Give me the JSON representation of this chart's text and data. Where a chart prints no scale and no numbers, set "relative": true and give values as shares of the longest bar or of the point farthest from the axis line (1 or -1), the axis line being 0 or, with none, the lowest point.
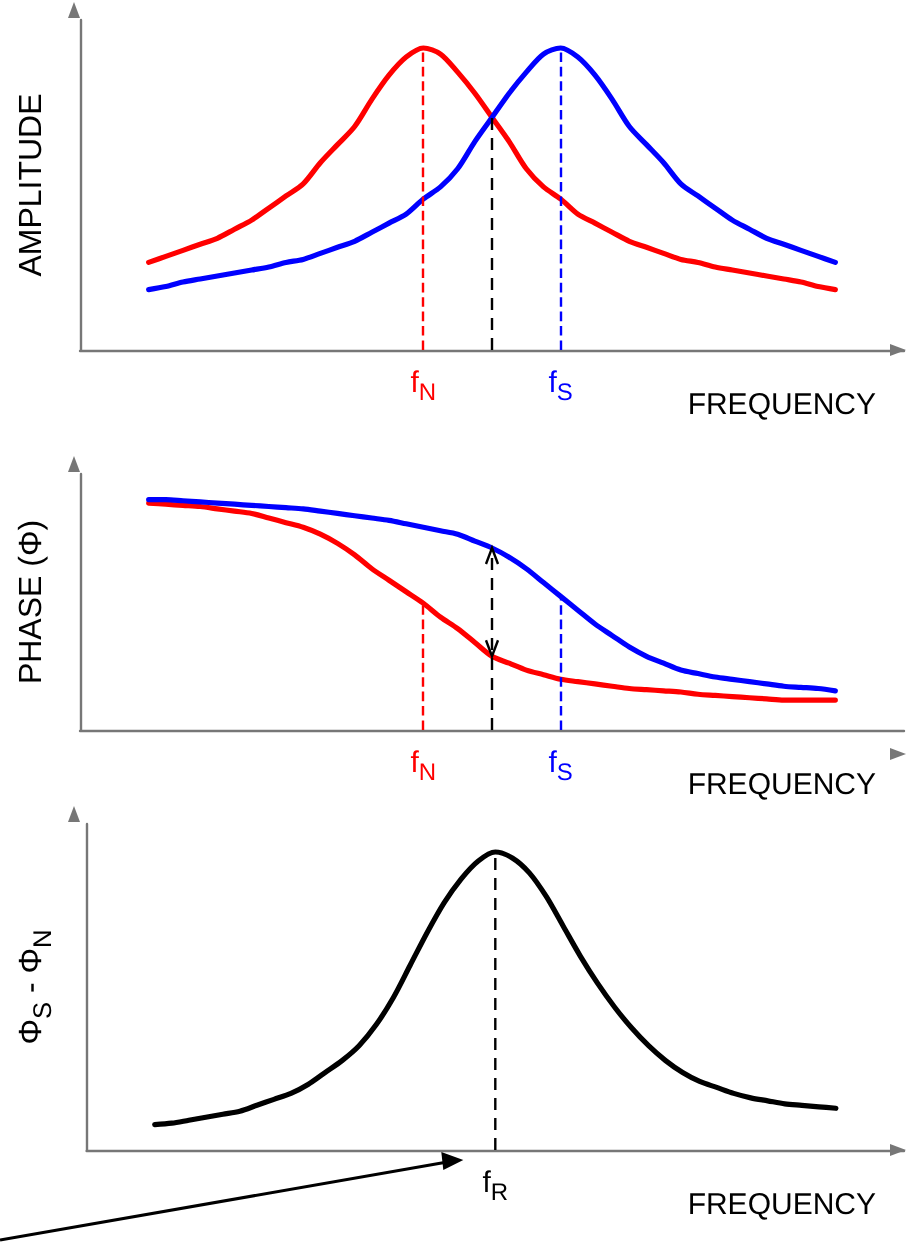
{
  "chart_data": [
    {
      "type": "line",
      "ylabel": "AMPLITUDE",
      "xlabel": "FREQUENCY",
      "relative": true,
      "tick_labels": "x",
      "grid": false,
      "marker": "none",
      "line_style": "solid",
      "categories": [
        null,
        null,
        null,
        null,
        null,
        null,
        null,
        null,
        null,
        null,
        null,
        null,
        null,
        null,
        null,
        null,
        null,
        null,
        null,
        null,
        "f$_{N}$",
        null,
        null,
        null,
        null,
        null,
        null,
        null,
        "f$_{S}$",
        null,
        null,
        null,
        null,
        null,
        null,
        null,
        null,
        null,
        null,
        null,
        null,
        null,
        null,
        null,
        null,
        null,
        null,
        null,
        null
      ],
      "series": [
        {
          "color": "#ff0000",
          "values": [
            null,
            null,
            null,
            null,
            0.29,
            0.31,
            0.33,
            0.35,
            0.37,
            0.4,
            0.43,
            0.47,
            0.51,
            0.55,
            0.62,
            0.68,
            0.74,
            0.83,
            0.91,
            0.97,
            1,
            0.98,
            0.92,
            0.85,
            0.77,
            0.69,
            0.6,
            0.54,
            0.5,
            0.45,
            0.42,
            0.39,
            0.36,
            0.34,
            0.32,
            0.3,
            0.29,
            0.275,
            0.265,
            0.255,
            0.245,
            0.235,
            0.225,
            0.21,
            0.2,
            null,
            null,
            null,
            null
          ]
        },
        {
          "color": "#0000ff",
          "values": [
            null,
            null,
            null,
            null,
            0.2,
            0.21,
            0.225,
            0.235,
            0.245,
            0.255,
            0.265,
            0.275,
            0.29,
            0.3,
            0.32,
            0.34,
            0.36,
            0.39,
            0.42,
            0.45,
            0.5,
            0.54,
            0.6,
            0.69,
            0.77,
            0.85,
            0.92,
            0.98,
            1,
            0.97,
            0.91,
            0.83,
            0.74,
            0.68,
            0.62,
            0.55,
            0.51,
            0.47,
            0.43,
            0.4,
            0.37,
            0.35,
            0.33,
            0.31,
            0.29,
            null,
            null,
            null,
            null
          ]
        }
      ],
      "ref_lines": [
        {
          "axis": "x",
          "value": "f$_{N}$",
          "label": null,
          "color": "#ff0000",
          "line_style": "dashed"
        },
        {
          "axis": "x",
          "value": "f$_{S}$",
          "label": null,
          "color": "#0000ff",
          "line_style": "dashed"
        }
      ]
    },
    {
      "type": "line",
      "ylabel": "PHASE (Φ)",
      "xlabel": "FREQUENCY",
      "relative": true,
      "tick_labels": "x",
      "grid": false,
      "marker": "none",
      "line_style": "solid",
      "categories": [
        null,
        null,
        null,
        null,
        null,
        null,
        null,
        null,
        null,
        null,
        null,
        null,
        null,
        null,
        null,
        null,
        null,
        null,
        null,
        null,
        "f$_{N}$",
        null,
        null,
        null,
        null,
        null,
        null,
        null,
        "f$_{S}$",
        null,
        null,
        null,
        null,
        null,
        null,
        null,
        null,
        null,
        null,
        null,
        null,
        null,
        null,
        null,
        null,
        null,
        null,
        null,
        null
      ],
      "series": [
        {
          "color": "#ff0000",
          "values": [
            null,
            null,
            null,
            null,
            0.985,
            0.98,
            0.975,
            0.97,
            0.96,
            0.95,
            0.94,
            0.92,
            0.9,
            0.88,
            0.85,
            0.81,
            0.76,
            0.7,
            0.65,
            0.6,
            0.55,
            0.49,
            0.44,
            0.38,
            0.32,
            0.29,
            0.26,
            0.24,
            0.22,
            0.21,
            0.2,
            0.19,
            0.18,
            0.175,
            0.17,
            0.165,
            0.155,
            0.15,
            0.145,
            0.14,
            0.135,
            0.13,
            0.13,
            0.13,
            0.13,
            null,
            null,
            null,
            null
          ]
        },
        {
          "color": "#0000ff",
          "values": [
            null,
            null,
            null,
            null,
            1,
            1,
            0.995,
            0.99,
            0.985,
            0.98,
            0.975,
            0.97,
            0.965,
            0.96,
            0.95,
            0.94,
            0.93,
            0.92,
            0.91,
            0.895,
            0.88,
            0.865,
            0.85,
            0.82,
            0.79,
            0.75,
            0.7,
            0.64,
            0.58,
            0.52,
            0.46,
            0.41,
            0.36,
            0.32,
            0.29,
            0.26,
            0.245,
            0.23,
            0.22,
            0.21,
            0.2,
            0.19,
            0.185,
            0.18,
            0.17,
            null,
            null,
            null,
            null
          ]
        }
      ],
      "ref_lines": [
        {
          "axis": "x",
          "value": "f$_{N}$",
          "label": null,
          "color": "#ff0000",
          "line_style": "dashed"
        },
        {
          "axis": "x",
          "value": "f$_{S}$",
          "label": null,
          "color": "#0000ff",
          "line_style": "dashed"
        }
      ]
    },
    {
      "type": "line",
      "ylabel": "Φ$_{S}$ - Φ$_{N}$",
      "xlabel": "FREQUENCY",
      "relative": true,
      "tick_labels": "x",
      "grid": false,
      "marker": "none",
      "line_style": "solid",
      "annotations": [
        "f$_{R}$"
      ],
      "categories": [
        null,
        null,
        null,
        null,
        null,
        null,
        null,
        null,
        null,
        null,
        null,
        null,
        null,
        null,
        null,
        null,
        null,
        null,
        null,
        null,
        null,
        null,
        null,
        null,
        null,
        null,
        null,
        null,
        null,
        null,
        null,
        null,
        null,
        null,
        null,
        null,
        null,
        null,
        null,
        null,
        null,
        null,
        null,
        null,
        null,
        null,
        null,
        null,
        null
      ],
      "series": [
        {
          "color": "#000000",
          "values": [
            null,
            null,
            null,
            null,
            0.085,
            0.09,
            0.1,
            0.11,
            0.12,
            0.13,
            0.15,
            0.17,
            0.19,
            0.22,
            0.26,
            0.3,
            0.35,
            0.42,
            0.51,
            0.62,
            0.73,
            0.83,
            0.91,
            0.97,
            1,
            0.98,
            0.93,
            0.85,
            0.75,
            0.65,
            0.56,
            0.48,
            0.41,
            0.35,
            0.3,
            0.26,
            0.23,
            0.21,
            0.19,
            0.175,
            0.165,
            0.155,
            0.15,
            0.145,
            0.14,
            null,
            null,
            null,
            null
          ]
        }
      ]
    }
  ]
}
